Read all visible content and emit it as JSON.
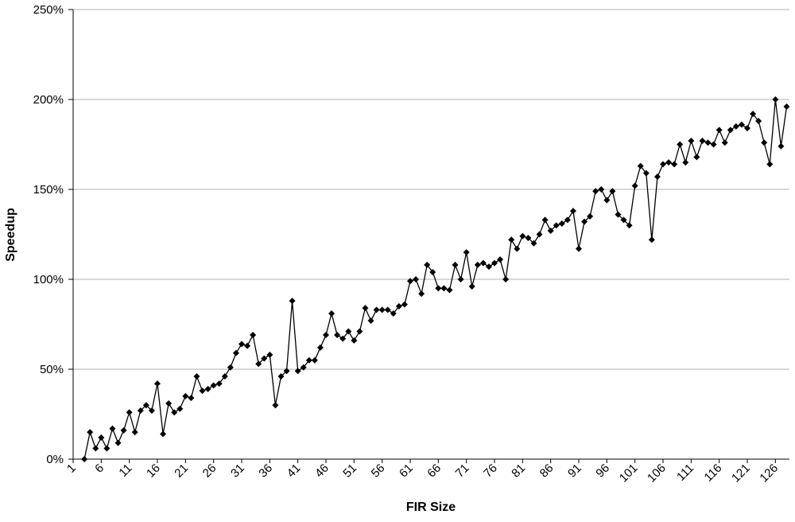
{
  "chart_data": {
    "type": "line",
    "x_label": "FIR Size",
    "y_label": "Speedup",
    "categories": [
      "1",
      null,
      null,
      null,
      null,
      "6",
      null,
      null,
      null,
      null,
      "11",
      null,
      null,
      null,
      null,
      "16",
      null,
      null,
      null,
      null,
      "21",
      null,
      null,
      null,
      null,
      "26",
      null,
      null,
      null,
      null,
      "31",
      null,
      null,
      null,
      null,
      "36",
      null,
      null,
      null,
      null,
      "41",
      null,
      null,
      null,
      null,
      "46",
      null,
      null,
      null,
      null,
      "51",
      null,
      null,
      null,
      null,
      "56",
      null,
      null,
      null,
      null,
      "61",
      null,
      null,
      null,
      null,
      "66",
      null,
      null,
      null,
      null,
      "71",
      null,
      null,
      null,
      null,
      "76",
      null,
      null,
      null,
      null,
      "81",
      null,
      null,
      null,
      null,
      "86",
      null,
      null,
      null,
      null,
      "91",
      null,
      null,
      null,
      null,
      "96",
      null,
      null,
      null,
      null,
      "101",
      null,
      null,
      null,
      null,
      "106",
      null,
      null,
      null,
      null,
      "111",
      null,
      null,
      null,
      null,
      "116",
      null,
      null,
      null,
      null,
      "121",
      null,
      null,
      null,
      null,
      "126",
      null,
      null
    ],
    "series": [
      {
        "name": "Speedup",
        "color": "#000000",
        "values": [
          null,
          null,
          0,
          15,
          6,
          12,
          6,
          17,
          9,
          16,
          26,
          15,
          27,
          30,
          27,
          42,
          14,
          31,
          26,
          28,
          35,
          34,
          46,
          38,
          39,
          41,
          42,
          46,
          51,
          59,
          64,
          63,
          69,
          53,
          56,
          58,
          30,
          46,
          49,
          88,
          49,
          51,
          55,
          55,
          62,
          69,
          81,
          69,
          67,
          71,
          66,
          71,
          84,
          77,
          83,
          83,
          83,
          81,
          85,
          86,
          99,
          100,
          92,
          108,
          104,
          95,
          95,
          94,
          108,
          100,
          115,
          96,
          108,
          109,
          107,
          109,
          111,
          100,
          122,
          117,
          124,
          123,
          120,
          125,
          133,
          127,
          130,
          131,
          133,
          138,
          117,
          132,
          135,
          149,
          150,
          144,
          149,
          136,
          133,
          130,
          152,
          163,
          159,
          122,
          157,
          164,
          165,
          164,
          175,
          165,
          177,
          168,
          177,
          176,
          175,
          183,
          176,
          183,
          185,
          186,
          184,
          192,
          188,
          176,
          164,
          200,
          174,
          196
        ]
      }
    ],
    "ylim": [
      0,
      250
    ],
    "yticks": [
      {
        "value": 0,
        "label": "0%"
      },
      {
        "value": 50,
        "label": "50%"
      },
      {
        "value": 100,
        "label": "100%"
      },
      {
        "value": 150,
        "label": "150%"
      },
      {
        "value": 200,
        "label": "200%"
      },
      {
        "value": 250,
        "label": "250%"
      }
    ],
    "grid": true
  }
}
